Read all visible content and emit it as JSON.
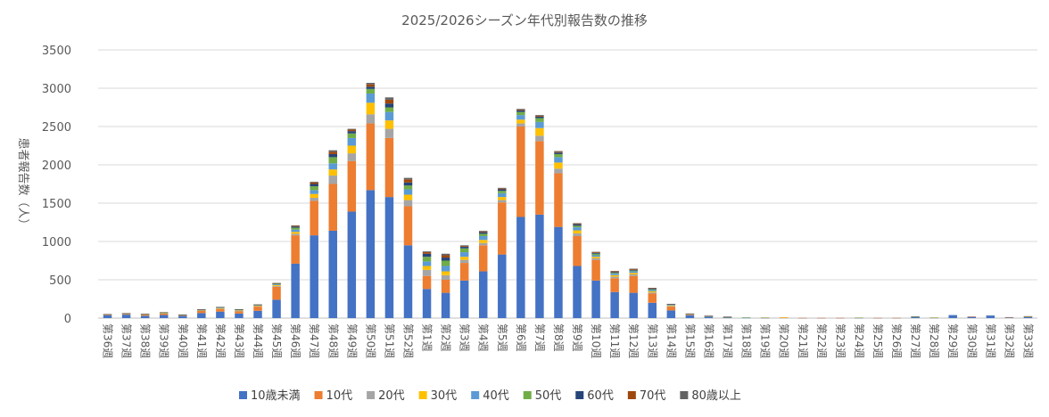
{
  "chart_data": {
    "type": "bar",
    "stacked": true,
    "title": "2025/2026シーズン年代別報告数の推移",
    "ylabel": "患者報告数（人）",
    "xlabel": "",
    "ylim": [
      0,
      3500
    ],
    "yticks": [
      "0",
      "500",
      "1000",
      "1500",
      "2000",
      "2500",
      "3000",
      "3500"
    ],
    "grid": true,
    "legend_position": "bottom",
    "categories": [
      "第36週",
      "第37週",
      "第38週",
      "第39週",
      "第40週",
      "第41週",
      "第42週",
      "第43週",
      "第44週",
      "第45週",
      "第46週",
      "第47週",
      "第48週",
      "第49週",
      "第50週",
      "第51週",
      "第52週",
      "第1週",
      "第2週",
      "第3週",
      "第4週",
      "第5週",
      "第6週",
      "第7週",
      "第8週",
      "第9週",
      "第10週",
      "第11週",
      "第12週",
      "第13週",
      "第14週",
      "第15週",
      "第16週",
      "第17週",
      "第18週",
      "第19週",
      "第20週",
      "第21週",
      "第22週",
      "第23週",
      "第24週",
      "第25週",
      "第26週",
      "第27週",
      "第28週",
      "第29週",
      "第30週",
      "第31週",
      "第32週",
      "第33週"
    ],
    "series": [
      {
        "name": "10歳未満",
        "color": "#4472C4",
        "values": [
          35,
          45,
          30,
          40,
          28,
          65,
          85,
          60,
          95,
          240,
          710,
          1080,
          1140,
          1390,
          1670,
          1580,
          950,
          380,
          330,
          490,
          610,
          830,
          1320,
          1350,
          1190,
          680,
          490,
          340,
          330,
          200,
          100,
          38,
          18,
          8,
          4,
          3,
          5,
          2,
          2,
          2,
          3,
          2,
          2,
          14,
          4,
          35,
          18,
          30,
          10,
          12
        ]
      },
      {
        "name": "10代",
        "color": "#ED7D31",
        "values": [
          8,
          10,
          12,
          18,
          8,
          30,
          35,
          30,
          55,
          170,
          370,
          450,
          610,
          660,
          870,
          770,
          510,
          170,
          170,
          230,
          340,
          680,
          1180,
          960,
          700,
          390,
          270,
          180,
          220,
          120,
          50,
          10,
          5,
          3,
          2,
          2,
          2,
          1,
          1,
          1,
          2,
          1,
          1,
          3,
          2,
          5,
          3,
          5,
          3,
          8
        ]
      },
      {
        "name": "20代",
        "color": "#A5A5A5",
        "values": [
          2,
          2,
          3,
          4,
          2,
          4,
          5,
          5,
          6,
          10,
          20,
          40,
          110,
          100,
          120,
          120,
          80,
          80,
          60,
          40,
          30,
          30,
          40,
          70,
          60,
          35,
          20,
          20,
          20,
          15,
          8,
          2,
          1,
          1,
          0,
          0,
          0,
          0,
          0,
          0,
          0,
          0,
          0,
          1,
          0,
          0,
          0,
          0,
          0,
          1
        ]
      },
      {
        "name": "30代",
        "color": "#FFC000",
        "values": [
          2,
          2,
          2,
          4,
          2,
          4,
          5,
          5,
          6,
          10,
          25,
          50,
          80,
          100,
          150,
          110,
          70,
          50,
          50,
          40,
          40,
          40,
          50,
          100,
          80,
          40,
          20,
          20,
          20,
          15,
          8,
          2,
          1,
          1,
          0,
          0,
          3,
          0,
          0,
          0,
          0,
          0,
          0,
          1,
          0,
          0,
          0,
          0,
          0,
          1
        ]
      },
      {
        "name": "40代",
        "color": "#5B9BD5",
        "values": [
          2,
          2,
          3,
          4,
          2,
          4,
          6,
          6,
          6,
          10,
          30,
          50,
          80,
          100,
          120,
          110,
          70,
          60,
          70,
          60,
          50,
          50,
          60,
          80,
          70,
          40,
          20,
          20,
          20,
          15,
          8,
          3,
          1,
          1,
          1,
          0,
          0,
          0,
          0,
          0,
          0,
          0,
          0,
          1,
          0,
          1,
          0,
          1,
          0,
          1
        ]
      },
      {
        "name": "50代",
        "color": "#70AD47",
        "values": [
          1,
          1,
          2,
          3,
          1,
          3,
          4,
          4,
          4,
          8,
          25,
          50,
          80,
          60,
          60,
          60,
          50,
          60,
          70,
          50,
          30,
          30,
          40,
          50,
          40,
          20,
          20,
          10,
          10,
          10,
          5,
          2,
          2,
          1,
          2,
          3,
          0,
          0,
          0,
          0,
          2,
          0,
          0,
          1,
          2,
          0,
          0,
          0,
          0,
          1
        ]
      },
      {
        "name": "60代",
        "color": "#264478",
        "values": [
          1,
          1,
          1,
          2,
          1,
          2,
          3,
          3,
          3,
          5,
          15,
          30,
          40,
          30,
          30,
          50,
          40,
          40,
          40,
          20,
          20,
          20,
          20,
          20,
          20,
          20,
          10,
          10,
          10,
          10,
          3,
          1,
          1,
          1,
          0,
          0,
          0,
          0,
          0,
          0,
          0,
          0,
          0,
          0,
          0,
          0,
          0,
          0,
          0,
          0
        ]
      },
      {
        "name": "70代",
        "color": "#9E480E",
        "values": [
          1,
          1,
          1,
          1,
          1,
          1,
          2,
          2,
          2,
          3,
          10,
          20,
          30,
          20,
          30,
          50,
          40,
          20,
          30,
          10,
          10,
          10,
          10,
          10,
          10,
          10,
          10,
          10,
          10,
          5,
          2,
          1,
          1,
          2,
          0,
          0,
          0,
          0,
          0,
          0,
          0,
          0,
          0,
          0,
          0,
          0,
          0,
          0,
          0,
          0
        ]
      },
      {
        "name": "80歳以上",
        "color": "#636363",
        "values": [
          1,
          1,
          1,
          1,
          1,
          1,
          1,
          1,
          1,
          2,
          5,
          10,
          20,
          10,
          20,
          30,
          20,
          10,
          20,
          10,
          10,
          10,
          10,
          10,
          10,
          5,
          5,
          5,
          5,
          5,
          2,
          1,
          1,
          1,
          0,
          0,
          0,
          0,
          0,
          0,
          0,
          0,
          0,
          1,
          0,
          0,
          0,
          0,
          0,
          1
        ]
      }
    ]
  }
}
